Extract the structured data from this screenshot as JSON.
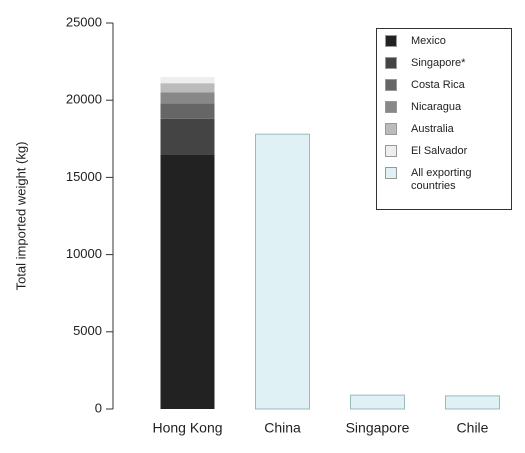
{
  "chart_data": {
    "type": "stacked-bar",
    "y_label": "Total imported weight (kg)",
    "categories": [
      "Hong Kong",
      "China",
      "Singapore",
      "Chile"
    ],
    "series": [
      {
        "name": "Mexico",
        "color": "#222222",
        "values": [
          16500,
          null,
          null,
          null
        ]
      },
      {
        "name": "Singapore*",
        "color": "#444444",
        "values": [
          2300,
          null,
          null,
          null
        ]
      },
      {
        "name": "Costa Rica",
        "color": "#666666",
        "values": [
          1000,
          null,
          null,
          null
        ]
      },
      {
        "name": "Nicaragua",
        "color": "#888888",
        "values": [
          700,
          null,
          null,
          null
        ]
      },
      {
        "name": "Australia",
        "color": "#bbbbbb",
        "values": [
          600,
          null,
          null,
          null
        ]
      },
      {
        "name": "El Salvador",
        "color": "#eeeeee",
        "values": [
          400,
          null,
          null,
          null
        ]
      },
      {
        "name": "All exporting countries",
        "color": "#dff1f5",
        "values": [
          null,
          17800,
          900,
          850
        ]
      }
    ],
    "ylim": [
      0,
      25000
    ],
    "yticks": [
      0,
      5000,
      10000,
      15000,
      20000,
      25000
    ],
    "legend": "top-right"
  }
}
